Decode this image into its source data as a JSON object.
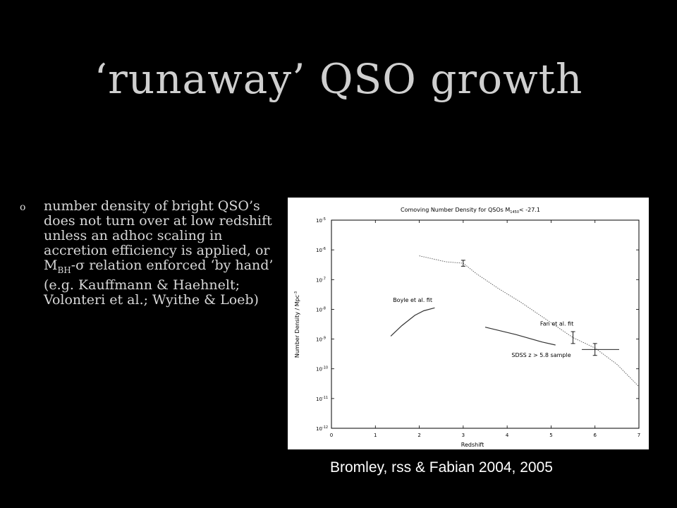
{
  "slide": {
    "title": "‘runaway’ QSO growth",
    "bullet_marker": "o",
    "bullet_text": "number density of bright QSO’s does not turn over at low redshift unless an adhoc scaling in accretion efficiency is applied, or M",
    "bullet_sub": "BH",
    "bullet_sigma": "-σ",
    "bullet_text2": " relation enforced ‘by hand’ (e.g. Kauffmann & Haehnelt; Volonteri et al.; Wyithe & Loeb)",
    "caption": "Bromley, rss & Fabian 2004, 2005"
  },
  "chart_data": {
    "type": "line",
    "title": "Comoving Number Density for QSOs M",
    "title_sub": "1450",
    "title_tail": "< -27.1",
    "xlabel": "Redshift",
    "ylabel": "Number Density / Mpc",
    "ylabel_sup": "-3",
    "xlim": [
      0,
      7
    ],
    "ylim_log10": [
      -12,
      -5
    ],
    "y_scale": "log",
    "x_ticks": [
      "0",
      "1",
      "2",
      "3",
      "4",
      "5",
      "6",
      "7"
    ],
    "y_ticks": [
      {
        "base": "10",
        "exp": "-5",
        "v": -5
      },
      {
        "base": "10",
        "exp": "-6",
        "v": -6
      },
      {
        "base": "10",
        "exp": "-7",
        "v": -7
      },
      {
        "base": "10",
        "exp": "-8",
        "v": -8
      },
      {
        "base": "10",
        "exp": "-9",
        "v": -9
      },
      {
        "base": "10",
        "exp": "-10",
        "v": -10
      },
      {
        "base": "10",
        "exp": "-11",
        "v": -11
      },
      {
        "base": "10",
        "exp": "-12",
        "v": -12
      }
    ],
    "series": [
      {
        "style": "dotted",
        "x": [
          2.0,
          2.6,
          3.0,
          3.3,
          3.8,
          4.3,
          4.9,
          5.5,
          6.0,
          6.5,
          7.0
        ],
        "log10_y": [
          -6.2,
          -6.4,
          -6.45,
          -6.8,
          -7.3,
          -7.75,
          -8.35,
          -8.95,
          -9.3,
          -9.85,
          -10.6
        ]
      },
      {
        "style": "solid",
        "x": [
          1.35,
          1.6,
          1.9,
          2.1,
          2.35
        ],
        "log10_y": [
          -8.9,
          -8.55,
          -8.2,
          -8.05,
          -7.95
        ]
      },
      {
        "style": "solid",
        "x": [
          3.5,
          4.2,
          4.8,
          5.1
        ],
        "log10_y": [
          -8.6,
          -8.85,
          -9.1,
          -9.2
        ]
      }
    ],
    "error_bars": [
      {
        "x": 3.0,
        "log10_y": -6.45,
        "ylo": -6.55,
        "yhi": -6.35
      },
      {
        "x": 5.5,
        "log10_y": -8.95,
        "ylo": -9.15,
        "yhi": -8.75
      },
      {
        "x": 6.0,
        "log10_y": -9.35,
        "ylo": -9.55,
        "yhi": -9.15,
        "xlo": 5.7,
        "xhi": 6.55
      }
    ],
    "annotations": [
      {
        "text": "Boyle et al. fit",
        "x": 1.4,
        "log10_y": -7.75
      },
      {
        "text": "Fan et al. fit",
        "x": 4.75,
        "log10_y": -8.55
      },
      {
        "text": "SDSS z > 5.8 sample",
        "x": 4.1,
        "log10_y": -9.6
      }
    ]
  }
}
